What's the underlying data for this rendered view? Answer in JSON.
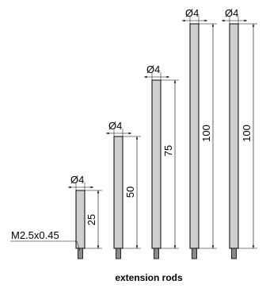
{
  "thread_label": "M2.5x0.45",
  "caption": "extension rods",
  "rods": [
    {
      "diameter_label": "Ø4",
      "length_label": "25"
    },
    {
      "diameter_label": "Ø4",
      "length_label": "50"
    },
    {
      "diameter_label": "Ø4",
      "length_label": "75"
    },
    {
      "diameter_label": "Ø4",
      "length_label": "100"
    },
    {
      "diameter_label": "Ø4",
      "length_label": "100"
    }
  ]
}
